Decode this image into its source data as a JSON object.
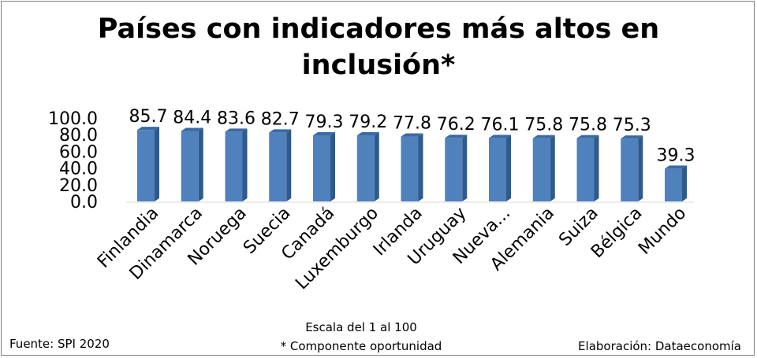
{
  "chart_data": {
    "type": "bar",
    "title_line1": "Países con indicadores más altos en",
    "title_line2": "inclusión*",
    "categories": [
      "Finlandia",
      "Dinamarca",
      "Noruega",
      "Suecia",
      "Canadá",
      "Luxemburgo",
      "Irlanda",
      "Uruguay",
      "Nueva...",
      "Alemania",
      "Suiza",
      "Bélgica",
      "Mundo"
    ],
    "values": [
      85.7,
      84.4,
      83.6,
      82.7,
      79.3,
      79.2,
      77.8,
      76.2,
      76.1,
      75.8,
      75.8,
      75.3,
      39.3
    ],
    "value_labels": [
      "85.7",
      "84.4",
      "83.6",
      "82.7",
      "79.3",
      "79.2",
      "77.8",
      "76.2",
      "76.1",
      "75.8",
      "75.8",
      "75.3",
      "39.3"
    ],
    "y_ticks": [
      "0.0",
      "20.0",
      "40.0",
      "60.0",
      "80.0",
      "100.0"
    ],
    "ylim": [
      0,
      100
    ],
    "grid": false,
    "bar_color": "#4f81bd",
    "bar_side_color": "#2f5a8c",
    "bar_top_color": "#3b6aa3"
  },
  "footer": {
    "source": "Fuente: SPI 2020",
    "scale_note": "Escala del 1 al 100",
    "component_note": "* Componente oportunidad",
    "credit": "Elaboración: Dataeconomía"
  }
}
